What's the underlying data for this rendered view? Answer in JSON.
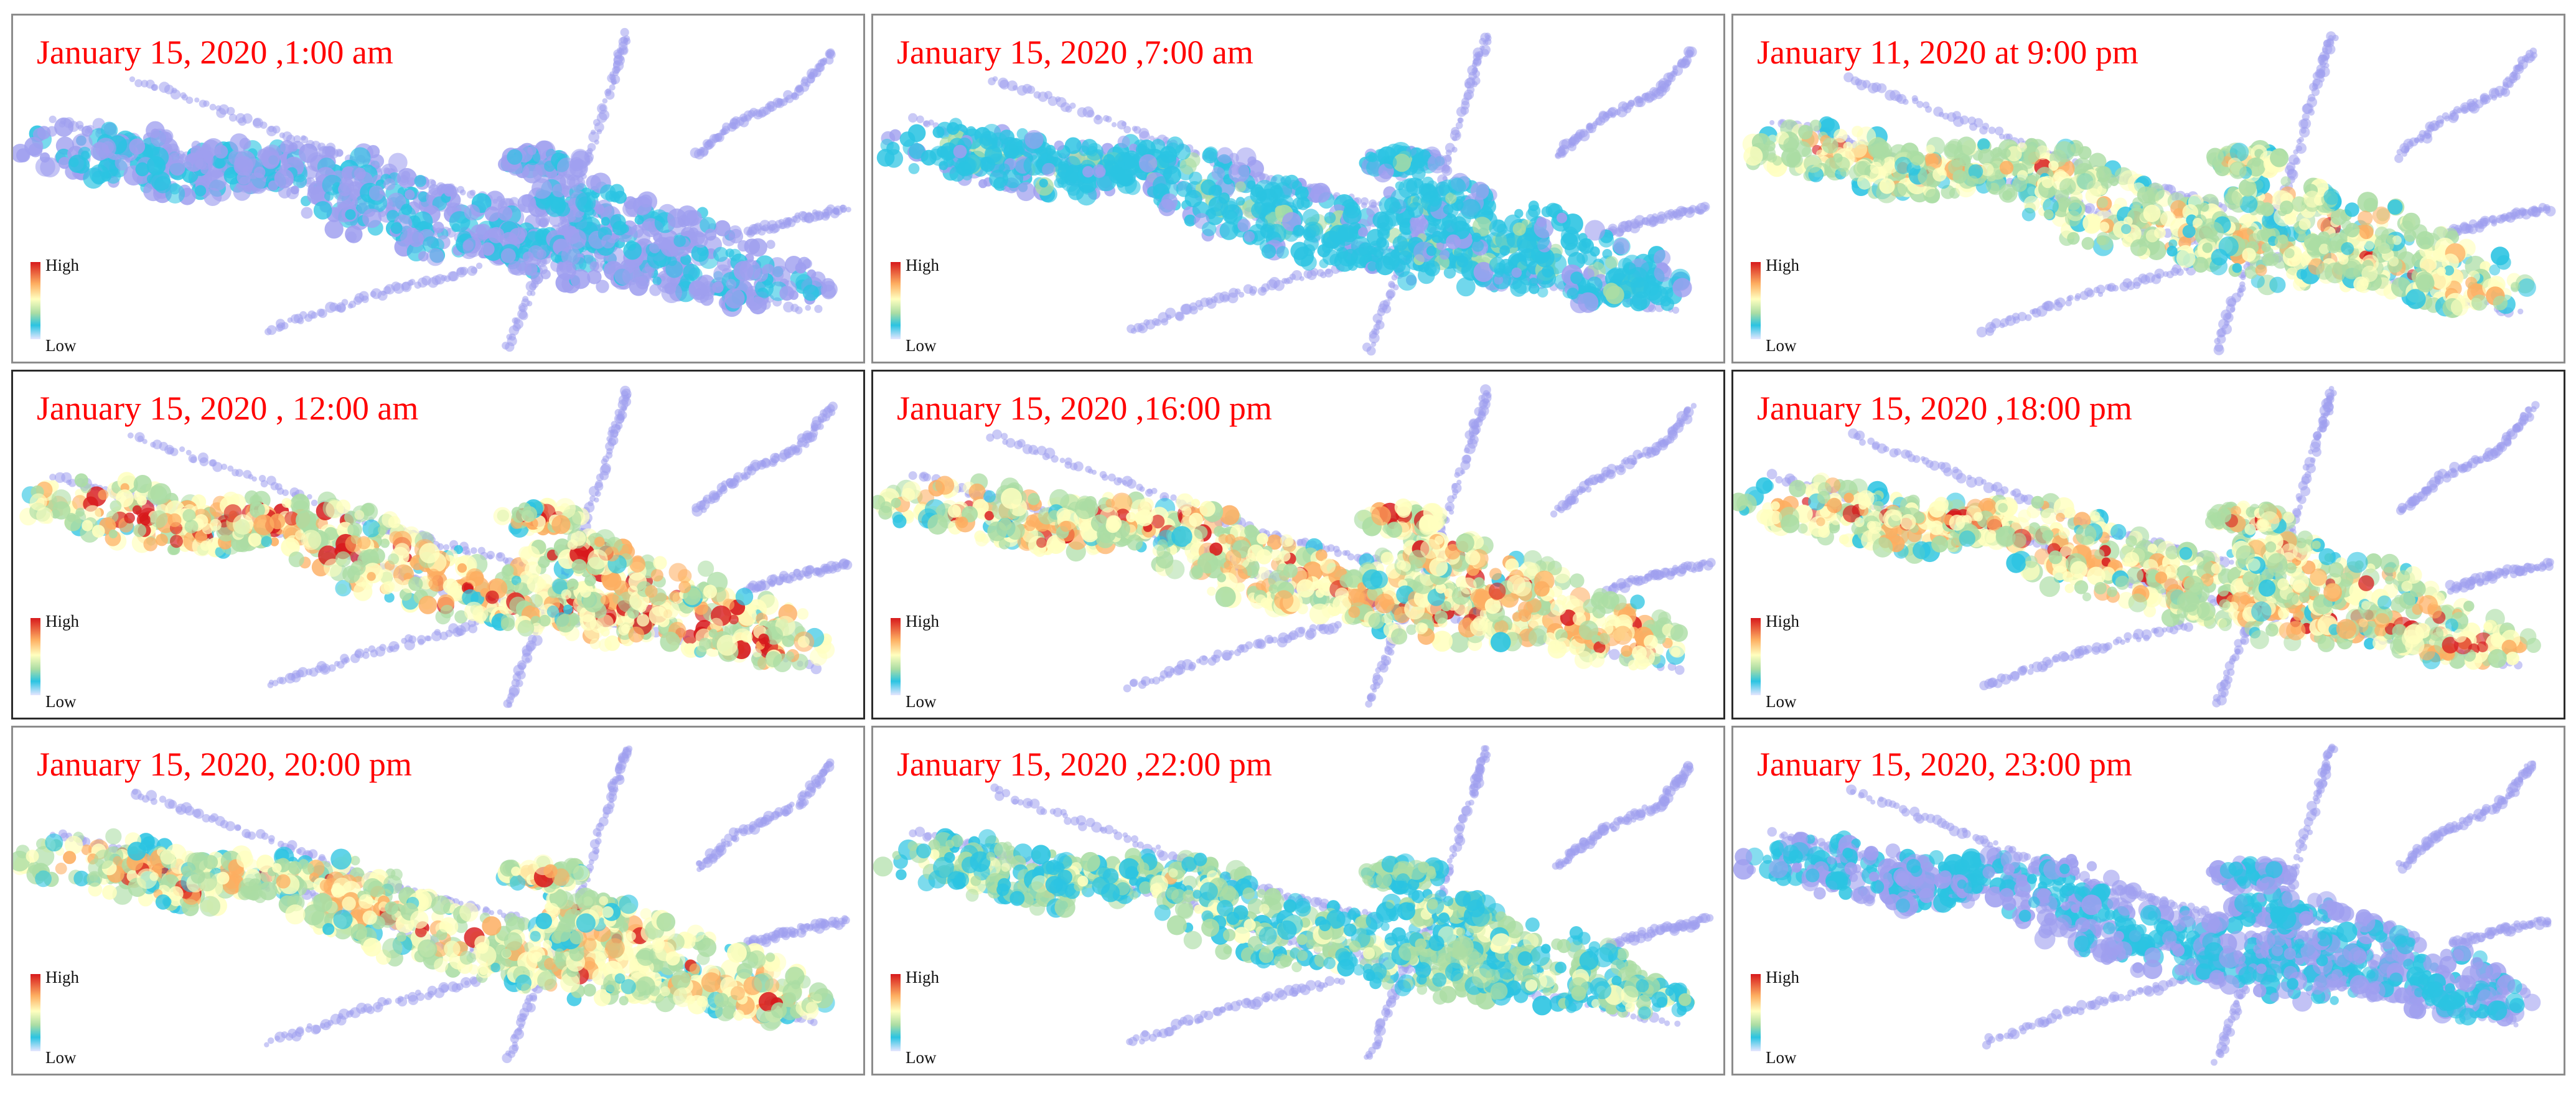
{
  "legend": {
    "high": "High",
    "low": "Low"
  },
  "colors": {
    "title": "#ff0000",
    "ramp": [
      "#e6e6ff",
      "#9f9fef",
      "#2bc4e2",
      "#abdda4",
      "#ffffbf",
      "#fdae61",
      "#d7191c"
    ]
  },
  "panels": [
    {
      "title": "January 15, 2020 ,1:00 am",
      "intensity": 0.22
    },
    {
      "title": "January 15, 2020 ,7:00 am",
      "intensity": 0.32
    },
    {
      "title": "January 11, 2020 at 9:00 pm",
      "intensity": 0.68
    },
    {
      "title": "January 15, 2020 , 12:00 am",
      "intensity": 0.82
    },
    {
      "title": "January 15, 2020 ,16:00 pm",
      "intensity": 0.8
    },
    {
      "title": "January 15, 2020 ,18:00 pm",
      "intensity": 0.76
    },
    {
      "title": "January 15, 2020, 20:00 pm",
      "intensity": 0.72
    },
    {
      "title": "January 15, 2020 ,22:00 pm",
      "intensity": 0.5
    },
    {
      "title": "January 15, 2020, 23:00 pm",
      "intensity": 0.24
    }
  ]
}
